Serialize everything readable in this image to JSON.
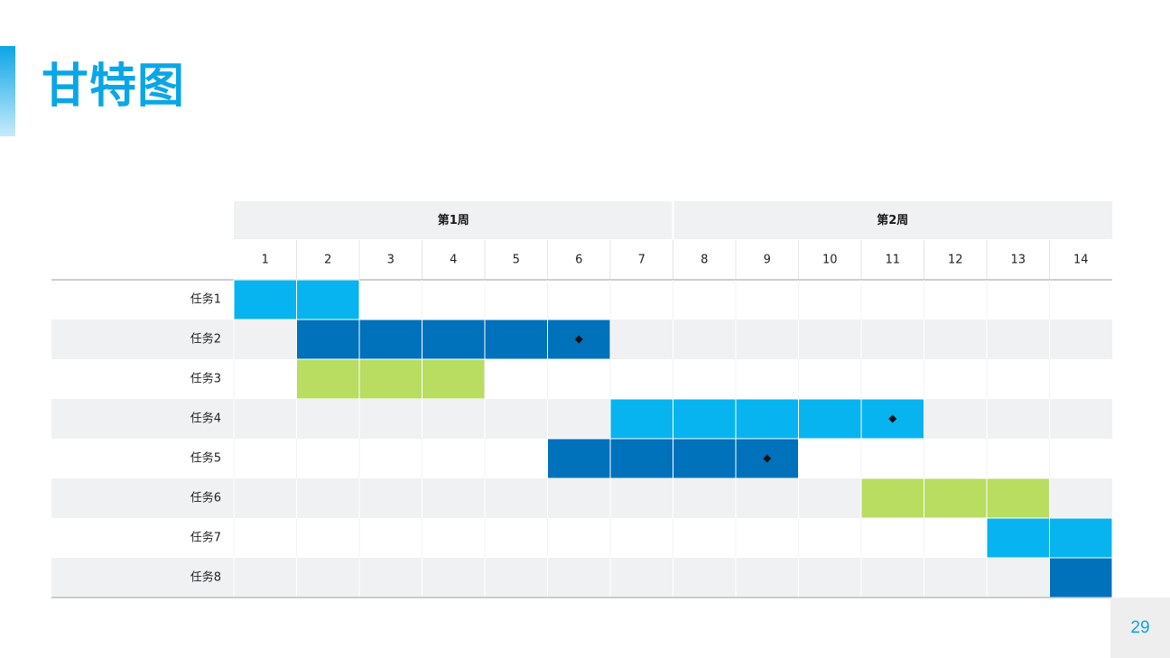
{
  "slide": {
    "title": "甘特图",
    "page_number": "29"
  },
  "colors": {
    "light_blue": "#07b4ef",
    "dark_blue": "#0071bb",
    "green": "#b8dd61",
    "row_alt": "#f0f1f3",
    "header_bg": "#f0f1f3",
    "milestone": "#111111"
  },
  "chart_data": {
    "type": "gantt",
    "weeks": [
      {
        "label": "第1周",
        "start": 1,
        "end": 7
      },
      {
        "label": "第2周",
        "start": 8,
        "end": 14
      }
    ],
    "days": [
      "1",
      "2",
      "3",
      "4",
      "5",
      "6",
      "7",
      "8",
      "9",
      "10",
      "11",
      "12",
      "13",
      "14"
    ],
    "tasks": [
      {
        "name": "任务1",
        "start": 1,
        "end": 2,
        "color": "light_blue",
        "milestone": null
      },
      {
        "name": "任务2",
        "start": 2,
        "end": 6,
        "color": "dark_blue",
        "milestone": 6
      },
      {
        "name": "任务3",
        "start": 2,
        "end": 4,
        "color": "green",
        "milestone": null
      },
      {
        "name": "任务4",
        "start": 7,
        "end": 11,
        "color": "light_blue",
        "milestone": 11
      },
      {
        "name": "任务5",
        "start": 6,
        "end": 9,
        "color": "dark_blue",
        "milestone": 9
      },
      {
        "name": "任务6",
        "start": 11,
        "end": 13,
        "color": "green",
        "milestone": null
      },
      {
        "name": "任务7",
        "start": 13,
        "end": 14,
        "color": "light_blue",
        "milestone": null
      },
      {
        "name": "任务8",
        "start": 14,
        "end": 14,
        "color": "dark_blue",
        "milestone": null
      }
    ]
  }
}
